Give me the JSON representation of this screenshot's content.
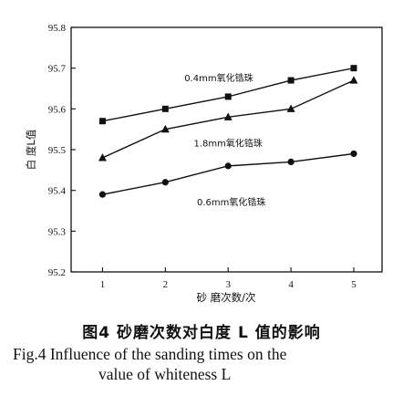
{
  "chart_data": {
    "type": "line",
    "title": "",
    "xlabel": "砂 磨次数/次",
    "ylabel": "白 度L值",
    "x": [
      1,
      2,
      3,
      4,
      5
    ],
    "xticks": [
      "1",
      "2",
      "3",
      "4",
      "5"
    ],
    "yticks": [
      "95.2",
      "95.3",
      "95.4",
      "95.5",
      "95.6",
      "95.7",
      "95.8"
    ],
    "xlim": [
      0.5,
      5.45
    ],
    "ylim": [
      95.2,
      95.8
    ],
    "grid": false,
    "series": [
      {
        "name": "0.4mm氧化锆珠",
        "marker": "square",
        "values": [
          95.57,
          95.6,
          95.63,
          95.67,
          95.7
        ]
      },
      {
        "name": "1.8mm氧化锆珠",
        "marker": "triangle",
        "values": [
          95.48,
          95.55,
          95.58,
          95.6,
          95.67
        ]
      },
      {
        "name": "0.6mm氧化锆珠",
        "marker": "circle",
        "values": [
          95.39,
          95.42,
          95.46,
          95.47,
          95.49
        ]
      }
    ]
  },
  "caption": {
    "cn": "图4   砂磨次数对白度 L 值的影响",
    "en_line1": "Fig.4   Influence of the sanding times on the",
    "en_line2": "value of whiteness L"
  }
}
